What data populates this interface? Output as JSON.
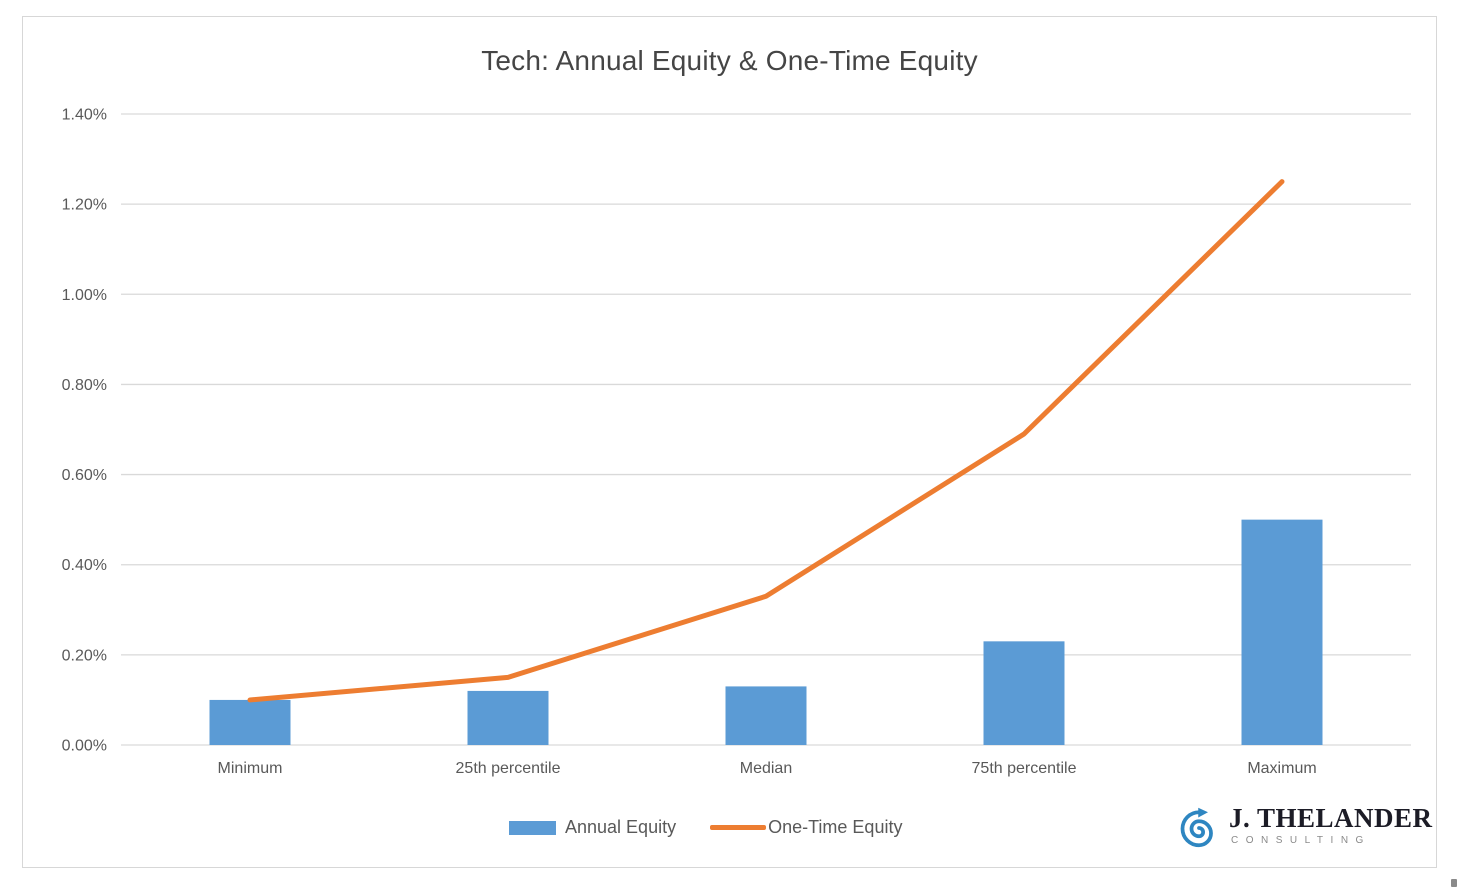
{
  "chart_data": {
    "type": "combo",
    "title": "Tech: Annual Equity & One-Time Equity",
    "categories": [
      "Minimum",
      "25th percentile",
      "Median",
      "75th percentile",
      "Maximum"
    ],
    "series": [
      {
        "name": "Annual Equity",
        "type": "bar",
        "color": "#5B9BD5",
        "values": [
          0.1,
          0.12,
          0.13,
          0.23,
          0.5
        ]
      },
      {
        "name": "One-Time Equity",
        "type": "line",
        "color": "#ED7D31",
        "values": [
          0.1,
          0.15,
          0.33,
          0.69,
          1.25
        ]
      }
    ],
    "ylim": [
      0,
      1.4
    ],
    "ytick": 0.2,
    "y_tick_labels": [
      "0.00%",
      "0.20%",
      "0.40%",
      "0.60%",
      "0.80%",
      "1.00%",
      "1.20%",
      "1.40%"
    ],
    "xlabel": "",
    "ylabel": "",
    "grid": true,
    "legend_position": "bottom"
  },
  "colors": {
    "bar": "#5B9BD5",
    "line": "#ED7D31",
    "gridline": "#D9D9D9",
    "axis_text": "#595959",
    "title_text": "#454545",
    "logo_icon": "#2E86C1",
    "logo_name_text": "#1C1C26",
    "logo_subtitle_text": "#8A8A8A"
  },
  "logo": {
    "name": "J. THELANDER",
    "subtitle": "CONSULTING"
  }
}
